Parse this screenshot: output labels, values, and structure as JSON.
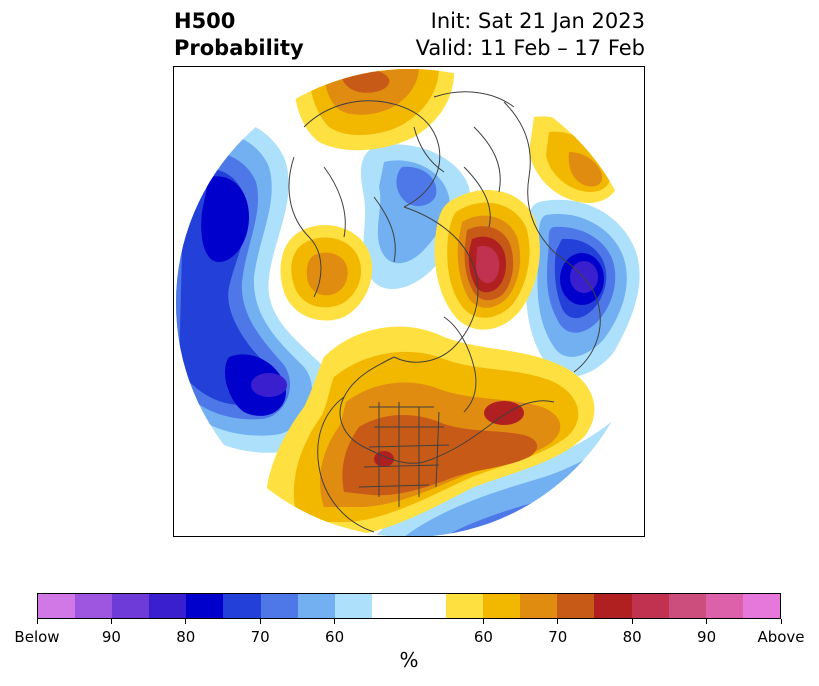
{
  "title": {
    "left_line1": "H500",
    "left_line2": "Probability",
    "right_line1": "Init: Sat 21 Jan 2023",
    "right_line2": "Valid: 11 Feb – 17 Feb"
  },
  "colorbar": {
    "unit": "%",
    "colors": [
      "#d277e6",
      "#9e55e0",
      "#6e3ad8",
      "#3a1fcf",
      "#0000cc",
      "#2341d9",
      "#4e78e8",
      "#72b0f2",
      "#ade0fb",
      "#ffffff",
      "#ffffff",
      "#ffe041",
      "#f2b800",
      "#e08c10",
      "#c85a18",
      "#b02020",
      "#c03250",
      "#cc4e7c",
      "#dd60aa",
      "#e678dc"
    ],
    "tick_labels": [
      "Below",
      "90",
      "80",
      "70",
      "60",
      "60",
      "70",
      "80",
      "90",
      "Above"
    ]
  },
  "map": {
    "projection": "north-polar-stereographic",
    "colors": {
      "below_light": "#ade0fb",
      "below_mid": "#72b0f2",
      "below_strong": "#4e78e8",
      "below_deep": "#2341d9",
      "below_core": "#0000cc",
      "below_max": "#3a1fcf",
      "above_light": "#ffe041",
      "above_mid": "#f2b800",
      "above_strong": "#e08c10",
      "above_deep": "#c85a18",
      "above_core": "#b02020",
      "above_max": "#c03250",
      "coast": "#404040"
    }
  }
}
